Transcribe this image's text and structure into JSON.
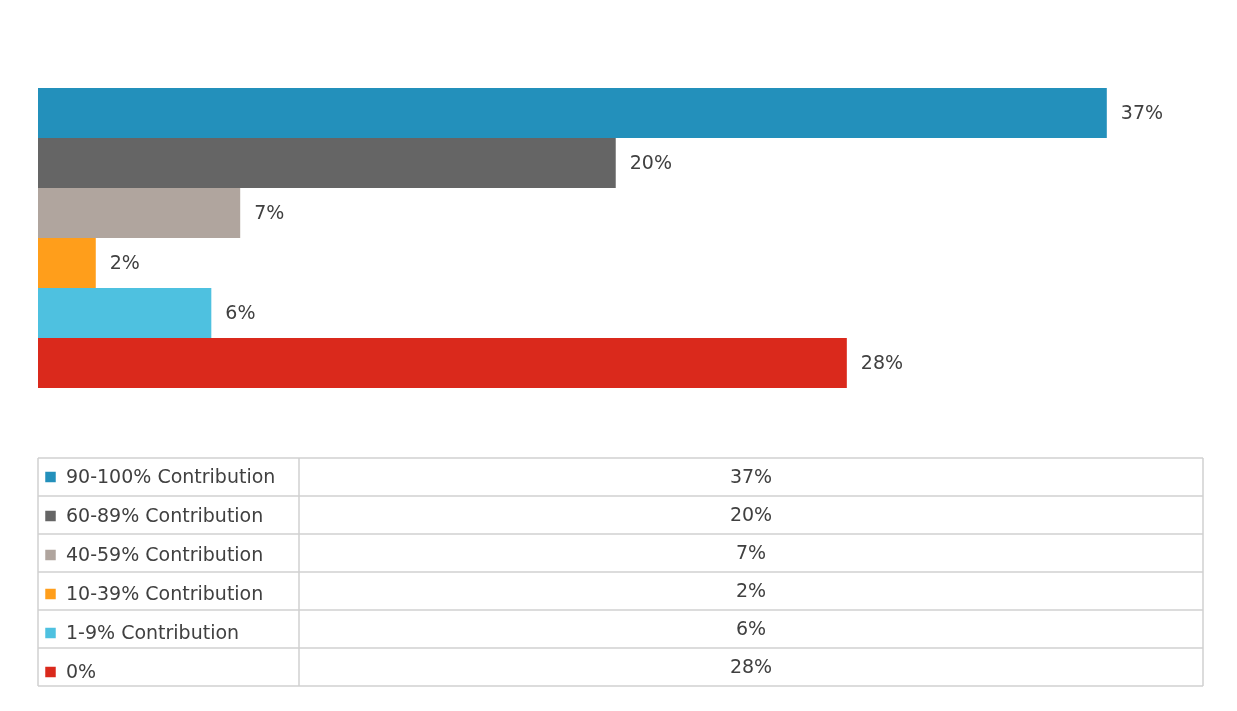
{
  "chart_data": {
    "type": "bar",
    "legend": "bottom",
    "orientation": "horizontal",
    "tick_labels": false,
    "categories": [
      null
    ],
    "series": [
      {
        "name": "90-100% Contribution",
        "color": "#2390bb",
        "values": [
          37
        ],
        "value_labels": [
          "37%"
        ]
      },
      {
        "name": "60-89% Contribution",
        "color": "#656565",
        "values": [
          20
        ],
        "value_labels": [
          "20%"
        ]
      },
      {
        "name": "40-59% Contribution",
        "color": "#b0a59e",
        "values": [
          7
        ],
        "value_labels": [
          "7%"
        ]
      },
      {
        "name": "10-39% Contribution",
        "color": "#ff9e1b",
        "values": [
          2
        ],
        "value_labels": [
          "2%"
        ]
      },
      {
        "name": "1-9% Contribution",
        "color": "#4ec1e0",
        "values": [
          6
        ],
        "value_labels": [
          "6%"
        ]
      },
      {
        "name": "0%",
        "color": "#da291c",
        "values": [
          28
        ],
        "value_labels": [
          "28%"
        ]
      }
    ]
  }
}
